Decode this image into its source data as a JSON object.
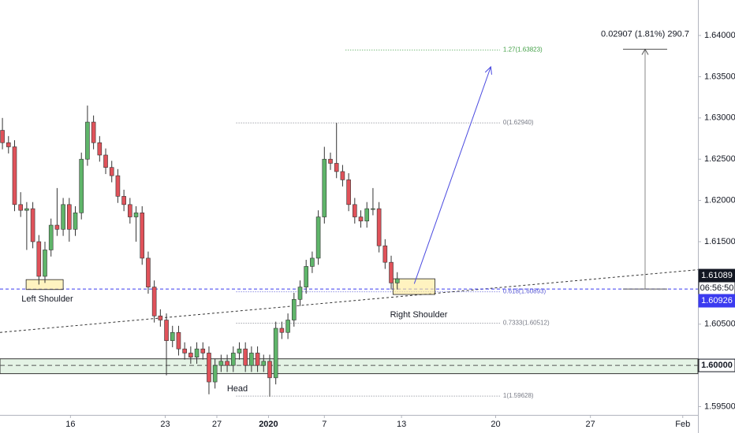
{
  "chart_data": {
    "type": "candlestick",
    "up_color": "#5fb56a",
    "down_color": "#e0525a",
    "open": [
      1.6285,
      1.627,
      1.6265,
      1.6195,
      1.6188,
      1.619,
      1.615,
      1.6108,
      1.614,
      1.617,
      1.6165,
      1.6195,
      1.6165,
      1.6185,
      1.625,
      1.6295,
      1.627,
      1.6255,
      1.624,
      1.623,
      1.6205,
      1.6195,
      1.618,
      1.6185,
      1.613,
      1.6095,
      1.606,
      1.6055,
      1.603,
      1.604,
      1.602,
      1.6015,
      1.601,
      1.602,
      1.6015,
      1.598,
      1.6,
      1.6005,
      1.6,
      1.6015,
      1.602,
      1.6,
      1.6015,
      1.6,
      1.6005,
      1.5985,
      1.6045,
      1.604,
      1.6055,
      1.608,
      1.6095,
      1.612,
      1.613,
      1.618,
      1.625,
      1.6245,
      1.6235,
      1.6225,
      1.6195,
      1.618,
      1.6175,
      1.619,
      1.619,
      1.6145,
      1.6125,
      1.61
    ],
    "high": [
      1.63,
      1.6278,
      1.6273,
      1.621,
      1.6198,
      1.6198,
      1.6158,
      1.615,
      1.6178,
      1.6215,
      1.6203,
      1.6203,
      1.6193,
      1.6258,
      1.6315,
      1.6303,
      1.6278,
      1.6263,
      1.6248,
      1.6238,
      1.6213,
      1.6203,
      1.6193,
      1.6193,
      1.6138,
      1.6103,
      1.6068,
      1.6063,
      1.6048,
      1.6048,
      1.6028,
      1.6023,
      1.6028,
      1.6028,
      1.6023,
      1.6008,
      1.6013,
      1.6013,
      1.6023,
      1.6028,
      1.6028,
      1.6023,
      1.6023,
      1.6013,
      1.6013,
      1.6053,
      1.6053,
      1.6063,
      1.6088,
      1.6103,
      1.6128,
      1.6138,
      1.6188,
      1.6265,
      1.6258,
      1.6294,
      1.6243,
      1.6233,
      1.6203,
      1.6188,
      1.6198,
      1.6215,
      1.6198,
      1.6153,
      1.6133,
      1.6113
    ],
    "low": [
      1.6262,
      1.6257,
      1.6187,
      1.618,
      1.614,
      1.6142,
      1.6098,
      1.61,
      1.6132,
      1.6157,
      1.6157,
      1.615,
      1.6157,
      1.6177,
      1.6242,
      1.6262,
      1.6247,
      1.6232,
      1.6222,
      1.6197,
      1.6187,
      1.6172,
      1.615,
      1.6122,
      1.6087,
      1.6052,
      1.6047,
      1.5988,
      1.6022,
      1.6012,
      1.6007,
      1.6002,
      1.6002,
      1.6007,
      1.5965,
      1.5972,
      1.5992,
      1.5992,
      1.5992,
      1.6007,
      1.5992,
      1.5992,
      1.5992,
      1.5992,
      1.5962,
      1.5977,
      1.6032,
      1.6032,
      1.6047,
      1.6072,
      1.6087,
      1.6112,
      1.6122,
      1.6172,
      1.6237,
      1.6227,
      1.6217,
      1.6187,
      1.6172,
      1.6167,
      1.6167,
      1.6182,
      1.6137,
      1.6117,
      1.6092,
      1.6092
    ],
    "close": [
      1.627,
      1.6265,
      1.6195,
      1.6188,
      1.619,
      1.615,
      1.6108,
      1.614,
      1.617,
      1.6165,
      1.6195,
      1.6165,
      1.6185,
      1.625,
      1.6295,
      1.627,
      1.6255,
      1.624,
      1.623,
      1.6205,
      1.6195,
      1.618,
      1.6185,
      1.613,
      1.6095,
      1.606,
      1.6055,
      1.603,
      1.604,
      1.602,
      1.6015,
      1.601,
      1.602,
      1.6015,
      1.598,
      1.6,
      1.6005,
      1.6,
      1.6015,
      1.602,
      1.6,
      1.6015,
      1.6,
      1.6005,
      1.5985,
      1.6045,
      1.604,
      1.6055,
      1.608,
      1.6095,
      1.612,
      1.613,
      1.618,
      1.625,
      1.6245,
      1.6235,
      1.6225,
      1.6195,
      1.618,
      1.6175,
      1.619,
      1.619,
      1.6145,
      1.6125,
      1.61,
      1.6105
    ],
    "xlim": [
      -0.4,
      114.5
    ],
    "xticks": [
      {
        "value": 11.2,
        "label": "16"
      },
      {
        "value": 26.8,
        "label": "23"
      },
      {
        "value": 35.3,
        "label": "27"
      },
      {
        "value": 43.8,
        "label": "2020"
      },
      {
        "value": 53,
        "label": "7"
      },
      {
        "value": 65.7,
        "label": "13"
      },
      {
        "value": 81.2,
        "label": "20"
      },
      {
        "value": 96.8,
        "label": "27"
      },
      {
        "value": 112,
        "label": "Feb"
      }
    ],
    "ylim": [
      1.594,
      1.6443
    ],
    "yticks": [
      {
        "value": 1.595,
        "label": "1.59500"
      },
      {
        "value": 1.605,
        "label": "1.60500"
      },
      {
        "value": 1.61,
        "label": "1.61000"
      },
      {
        "value": 1.615,
        "label": "1.61500"
      },
      {
        "value": 1.62,
        "label": "1.62000"
      },
      {
        "value": 1.625,
        "label": "1.62500"
      },
      {
        "value": 1.63,
        "label": "1.63000"
      },
      {
        "value": 1.635,
        "label": "1.63500"
      },
      {
        "value": 1.64,
        "label": "1.64000"
      }
    ],
    "fib_levels": [
      {
        "value": 1.63823,
        "label": "1.27(1.63823)",
        "color": "#43a047"
      },
      {
        "value": 1.6294,
        "label": "0(1.62940)",
        "color": "#787b86"
      },
      {
        "value": 1.60893,
        "label": "0.618(1.60893)",
        "color": "#5b5bd6"
      },
      {
        "value": 1.60512,
        "label": "0.7333(1.60512)",
        "color": "#787b86"
      },
      {
        "value": 1.59628,
        "label": "1(1.59628)",
        "color": "#787b86"
      }
    ],
    "annotations": [
      {
        "text": "Left Shoulder"
      },
      {
        "text": "Head"
      },
      {
        "text": "Right Shoulder"
      }
    ],
    "support_zone": [
      1.599,
      1.6008
    ],
    "support_level": {
      "value": 1.6,
      "label": "1.60000"
    },
    "price_line": {
      "value": 1.60926,
      "color": "#3b3bf0"
    },
    "last_price": 1.61089,
    "countdown": "06:56:50",
    "neckline": {
      "x": [
        -0.4,
        114.5
      ],
      "y": [
        1.604,
        1.6116
      ]
    },
    "shoulder_boxes": [
      {
        "x": [
          3.9,
          10
        ],
        "y": [
          1.6092,
          1.6104
        ]
      },
      {
        "x": [
          64.3,
          71.2
        ],
        "y": [
          1.6086,
          1.6105
        ]
      }
    ],
    "arrow": {
      "x": [
        67.8,
        80.4
      ],
      "y": [
        1.6099,
        1.6362
      ],
      "color": "#4a4ae0"
    },
    "measure": {
      "x": 105.8,
      "from": 1.60926,
      "to": 1.63833,
      "label": "0.02907 (1.81%) 290.7"
    }
  }
}
